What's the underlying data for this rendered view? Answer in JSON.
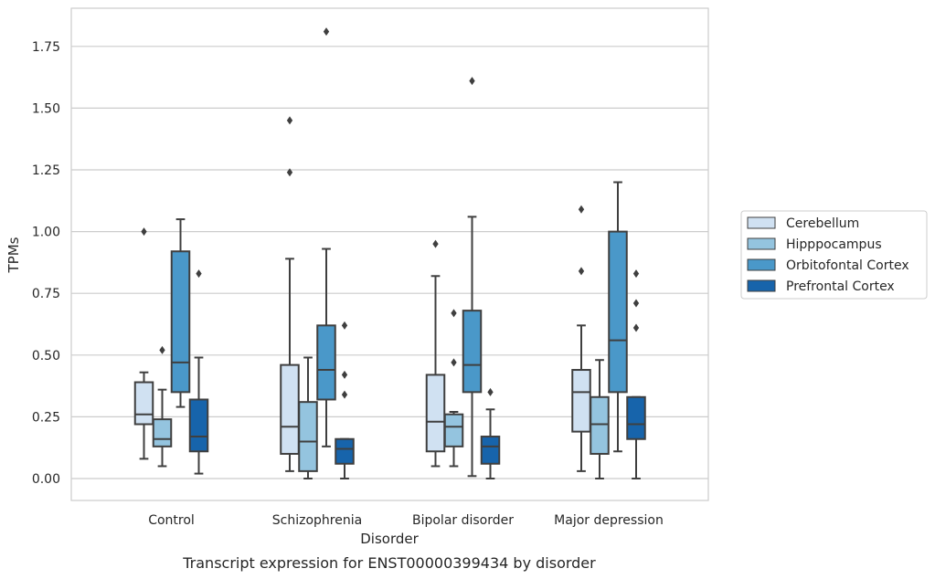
{
  "chart_data": {
    "type": "box",
    "caption": "Transcript expression for ENST00000399434 by disorder",
    "xlabel": "Disorder",
    "ylabel": "TPMs",
    "ylim": [
      -0.09,
      1.9
    ],
    "yticks": [
      0.0,
      0.25,
      0.5,
      0.75,
      1.0,
      1.25,
      1.5,
      1.75
    ],
    "ytick_labels": [
      "0.00",
      "0.25",
      "0.50",
      "0.75",
      "1.00",
      "1.25",
      "1.50",
      "1.75"
    ],
    "grid": "horizontal",
    "legend_position": "right",
    "categories": [
      "Control",
      "Schizophrenia",
      "Bipolar disorder",
      "Major depression"
    ],
    "series": [
      {
        "name": "Cerebellum",
        "color": "#d0e1f2",
        "boxes": [
          {
            "whislo": 0.08,
            "q1": 0.22,
            "med": 0.26,
            "q3": 0.39,
            "whishi": 0.43,
            "fliers": [
              1.0
            ]
          },
          {
            "whislo": 0.03,
            "q1": 0.1,
            "med": 0.21,
            "q3": 0.46,
            "whishi": 0.89,
            "fliers": [
              1.45,
              1.24
            ]
          },
          {
            "whislo": 0.05,
            "q1": 0.11,
            "med": 0.23,
            "q3": 0.42,
            "whishi": 0.82,
            "fliers": [
              0.95
            ]
          },
          {
            "whislo": 0.03,
            "q1": 0.19,
            "med": 0.35,
            "q3": 0.44,
            "whishi": 0.62,
            "fliers": [
              1.09,
              0.84
            ]
          }
        ]
      },
      {
        "name": "Hipppocampus",
        "color": "#94c4df",
        "boxes": [
          {
            "whislo": 0.05,
            "q1": 0.13,
            "med": 0.16,
            "q3": 0.24,
            "whishi": 0.36,
            "fliers": [
              0.52
            ]
          },
          {
            "whislo": 0.0,
            "q1": 0.03,
            "med": 0.15,
            "q3": 0.31,
            "whishi": 0.49,
            "fliers": []
          },
          {
            "whislo": 0.05,
            "q1": 0.13,
            "med": 0.21,
            "q3": 0.26,
            "whishi": 0.27,
            "fliers": [
              0.67,
              0.47
            ]
          },
          {
            "whislo": 0.0,
            "q1": 0.1,
            "med": 0.22,
            "q3": 0.33,
            "whishi": 0.48,
            "fliers": []
          }
        ]
      },
      {
        "name": "Orbitofontal Cortex",
        "color": "#4a98c9",
        "boxes": [
          {
            "whislo": 0.29,
            "q1": 0.35,
            "med": 0.47,
            "q3": 0.92,
            "whishi": 1.05,
            "fliers": []
          },
          {
            "whislo": 0.13,
            "q1": 0.32,
            "med": 0.44,
            "q3": 0.62,
            "whishi": 0.93,
            "fliers": [
              1.81
            ]
          },
          {
            "whislo": 0.01,
            "q1": 0.35,
            "med": 0.46,
            "q3": 0.68,
            "whishi": 1.06,
            "fliers": [
              1.61
            ]
          },
          {
            "whislo": 0.11,
            "q1": 0.35,
            "med": 0.56,
            "q3": 1.0,
            "whishi": 1.2,
            "fliers": []
          }
        ]
      },
      {
        "name": "Prefrontal Cortex",
        "color": "#1764ab",
        "boxes": [
          {
            "whislo": 0.02,
            "q1": 0.11,
            "med": 0.17,
            "q3": 0.32,
            "whishi": 0.49,
            "fliers": [
              0.83
            ]
          },
          {
            "whislo": 0.0,
            "q1": 0.06,
            "med": 0.12,
            "q3": 0.16,
            "whishi": 0.16,
            "fliers": [
              0.62,
              0.42,
              0.34
            ]
          },
          {
            "whislo": 0.0,
            "q1": 0.06,
            "med": 0.13,
            "q3": 0.17,
            "whishi": 0.28,
            "fliers": [
              0.35
            ]
          },
          {
            "whislo": 0.0,
            "q1": 0.16,
            "med": 0.22,
            "q3": 0.33,
            "whishi": 0.33,
            "fliers": [
              0.83,
              0.71,
              0.61
            ]
          }
        ]
      }
    ]
  }
}
